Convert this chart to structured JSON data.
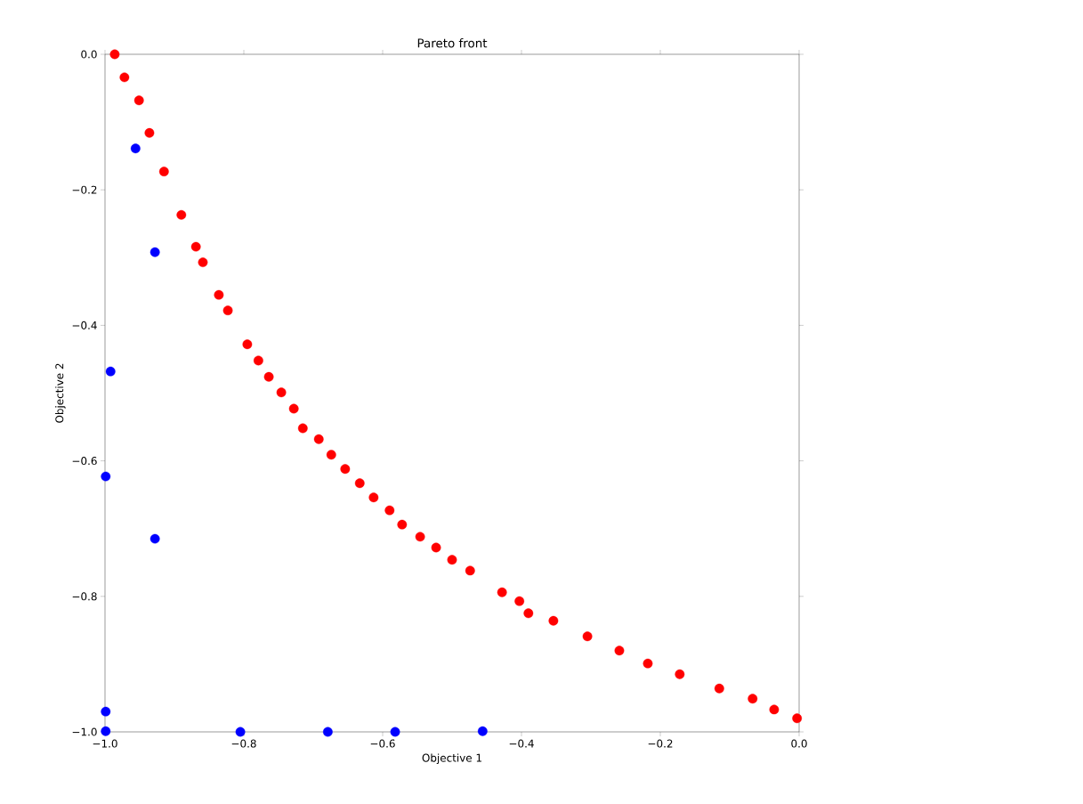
{
  "chart_data": {
    "type": "scatter",
    "title": "Pareto front",
    "xlabel": "Objective 1",
    "ylabel": "Objective 2",
    "xlim": [
      -1.0,
      0.0
    ],
    "ylim": [
      -1.0,
      0.0
    ],
    "xticks": [
      {
        "value": -1.0,
        "label": "−1.0"
      },
      {
        "value": -0.8,
        "label": "−0.8"
      },
      {
        "value": -0.6,
        "label": "−0.6"
      },
      {
        "value": -0.4,
        "label": "−0.4"
      },
      {
        "value": -0.2,
        "label": "−0.2"
      },
      {
        "value": 0.0,
        "label": "0.0"
      }
    ],
    "yticks": [
      {
        "value": -1.0,
        "label": "−1.0"
      },
      {
        "value": -0.8,
        "label": "−0.8"
      },
      {
        "value": -0.6,
        "label": "−0.6"
      },
      {
        "value": -0.4,
        "label": "−0.4"
      },
      {
        "value": -0.2,
        "label": "−0.2"
      },
      {
        "value": 0.0,
        "label": "0.0"
      }
    ],
    "marker": "circle",
    "series": [
      {
        "color": "#0000ff",
        "x": [
          -0.956,
          -0.928,
          -0.992,
          -0.999,
          -0.928,
          -0.999,
          -0.999,
          -0.805,
          -0.679,
          -0.582,
          -0.456
        ],
        "values": [
          -0.139,
          -0.292,
          -0.468,
          -0.623,
          -0.715,
          -0.97,
          -0.999,
          -1.0,
          -1.0,
          -1.0,
          -0.999
        ]
      },
      {
        "color": "#ff0000",
        "x": [
          -0.986,
          -0.972,
          -0.951,
          -0.936,
          -0.915,
          -0.89,
          -0.869,
          -0.859,
          -0.836,
          -0.823,
          -0.795,
          -0.779,
          -0.764,
          -0.746,
          -0.728,
          -0.715,
          -0.692,
          -0.674,
          -0.654,
          -0.633,
          -0.613,
          -0.59,
          -0.572,
          -0.546,
          -0.523,
          -0.5,
          -0.474,
          -0.428,
          -0.403,
          -0.39,
          -0.354,
          -0.305,
          -0.259,
          -0.218,
          -0.172,
          -0.115,
          -0.067,
          -0.036,
          -0.003
        ],
        "values": [
          0.0,
          -0.034,
          -0.068,
          -0.116,
          -0.173,
          -0.237,
          -0.284,
          -0.307,
          -0.355,
          -0.378,
          -0.428,
          -0.452,
          -0.476,
          -0.499,
          -0.523,
          -0.552,
          -0.568,
          -0.591,
          -0.612,
          -0.633,
          -0.654,
          -0.673,
          -0.694,
          -0.712,
          -0.728,
          -0.746,
          -0.762,
          -0.794,
          -0.807,
          -0.825,
          -0.836,
          -0.859,
          -0.88,
          -0.899,
          -0.915,
          -0.936,
          -0.951,
          -0.967,
          -0.98
        ]
      }
    ]
  }
}
